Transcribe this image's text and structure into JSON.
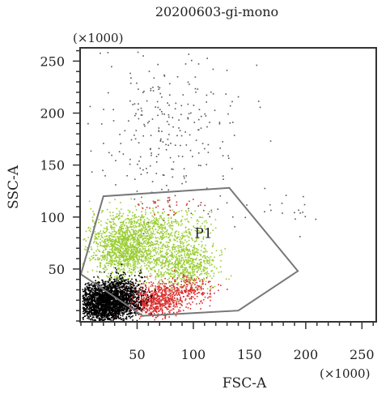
{
  "chart_data": {
    "type": "scatter",
    "title": "20200603-gi-mono",
    "xlabel": "FSC-A",
    "ylabel": "SSC-A",
    "x_multiplier": "(×1000)",
    "y_multiplier": "(×1000)",
    "xlim": [
      0,
      262
    ],
    "ylim": [
      0,
      262
    ],
    "x_ticks": [
      50,
      100,
      150,
      200,
      250
    ],
    "y_ticks": [
      50,
      100,
      150,
      200,
      250
    ],
    "gate": {
      "label": "P1",
      "label_pos": [
        101,
        80
      ],
      "vertices": [
        [
          0,
          45
        ],
        [
          20,
          120
        ],
        [
          132,
          128
        ],
        [
          193,
          48
        ],
        [
          140,
          10
        ],
        [
          55,
          5
        ]
      ]
    },
    "series": [
      {
        "color": "#9acd32",
        "clusters": [
          {
            "cx": 40,
            "cy": 72,
            "sx": 16,
            "sy": 15,
            "n": 1400
          },
          {
            "cx": 92,
            "cy": 56,
            "sx": 14,
            "sy": 12,
            "n": 700
          },
          {
            "cx": 70,
            "cy": 92,
            "sx": 20,
            "sy": 9,
            "n": 300
          }
        ]
      },
      {
        "color": "#d92b2b",
        "clusters": [
          {
            "cx": 65,
            "cy": 20,
            "sx": 12,
            "sy": 8,
            "n": 650
          },
          {
            "cx": 95,
            "cy": 32,
            "sx": 12,
            "sy": 7,
            "n": 200
          },
          {
            "cx": 80,
            "cy": 110,
            "sx": 16,
            "sy": 6,
            "n": 35
          }
        ]
      },
      {
        "color": "#000000",
        "clusters": [
          {
            "cx": 22,
            "cy": 18,
            "sx": 13,
            "sy": 9,
            "n": 2200
          },
          {
            "cx": 35,
            "cy": 30,
            "sx": 10,
            "sy": 8,
            "n": 400
          }
        ]
      },
      {
        "color": "#555555",
        "clusters": [
          {
            "cx": 75,
            "cy": 185,
            "sx": 32,
            "sy": 38,
            "n": 260
          },
          {
            "cx": 175,
            "cy": 108,
            "sx": 22,
            "sy": 10,
            "n": 20
          }
        ]
      }
    ]
  }
}
